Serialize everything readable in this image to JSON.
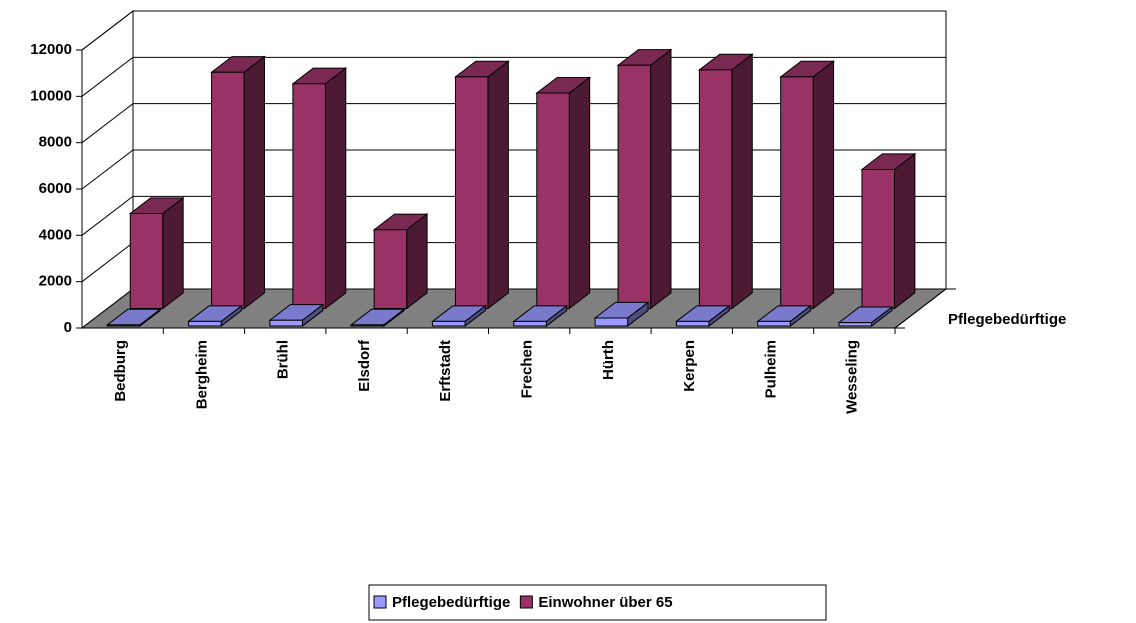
{
  "chart_data": {
    "type": "bar3d",
    "categories": [
      "Bedburg",
      "Bergheim",
      "Brühl",
      "Elsdorf",
      "Erftstadt",
      "Frechen",
      "Hürth",
      "Kerpen",
      "Pulheim",
      "Wesseling"
    ],
    "series": [
      {
        "name": "Pflegebedürftige",
        "color": "#9999ff",
        "values": [
          50,
          200,
          250,
          50,
          200,
          200,
          350,
          200,
          200,
          150
        ]
      },
      {
        "name": "Einwohner über 65",
        "color": "#993366",
        "values": [
          4100,
          10200,
          9700,
          3400,
          10000,
          9300,
          10500,
          10300,
          10000,
          6000
        ]
      }
    ],
    "ylim": [
      0,
      12000
    ],
    "yticks": [
      0,
      2000,
      4000,
      6000,
      8000,
      10000,
      12000
    ],
    "grid": true,
    "legend": "bottom"
  }
}
